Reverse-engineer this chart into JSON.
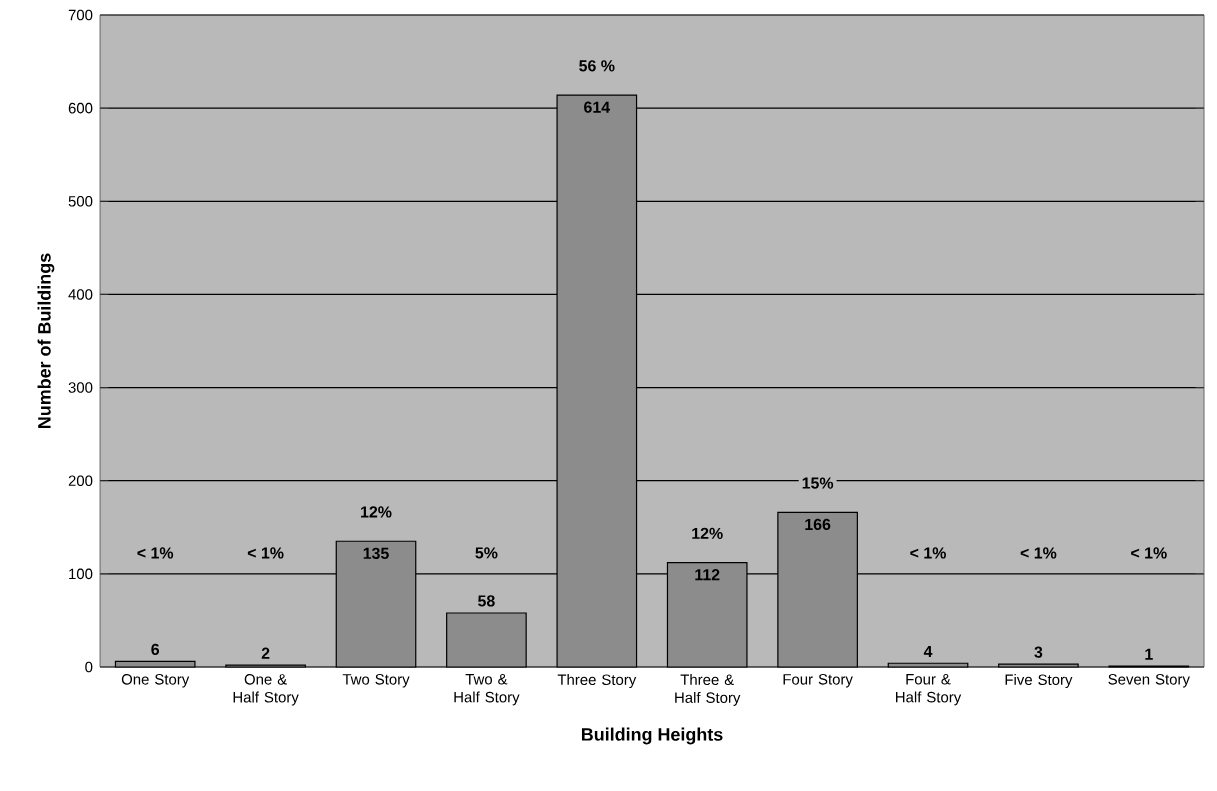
{
  "chart_data": {
    "type": "bar",
    "xlabel": "Building Heights",
    "ylabel": "Number of Buildings",
    "categories": [
      "One Story",
      "One & Half Story",
      "Two Story",
      "Two & Half Story",
      "Three Story",
      "Three & Half Story",
      "Four Story",
      "Four & Half Story",
      "Five Story",
      "Seven Story"
    ],
    "values": [
      6,
      2,
      135,
      58,
      614,
      112,
      166,
      4,
      3,
      1
    ],
    "color": "#8c8c8c",
    "ylim": [
      0,
      700
    ],
    "yticks": [
      0,
      100,
      200,
      300,
      400,
      500,
      600,
      700
    ],
    "grid": "y",
    "data_labels": true,
    "annotations": [
      "< 1%",
      "< 1%",
      "12%",
      "5%",
      "56 %",
      "12%",
      "15%",
      "< 1%",
      "< 1%",
      "< 1%"
    ]
  }
}
